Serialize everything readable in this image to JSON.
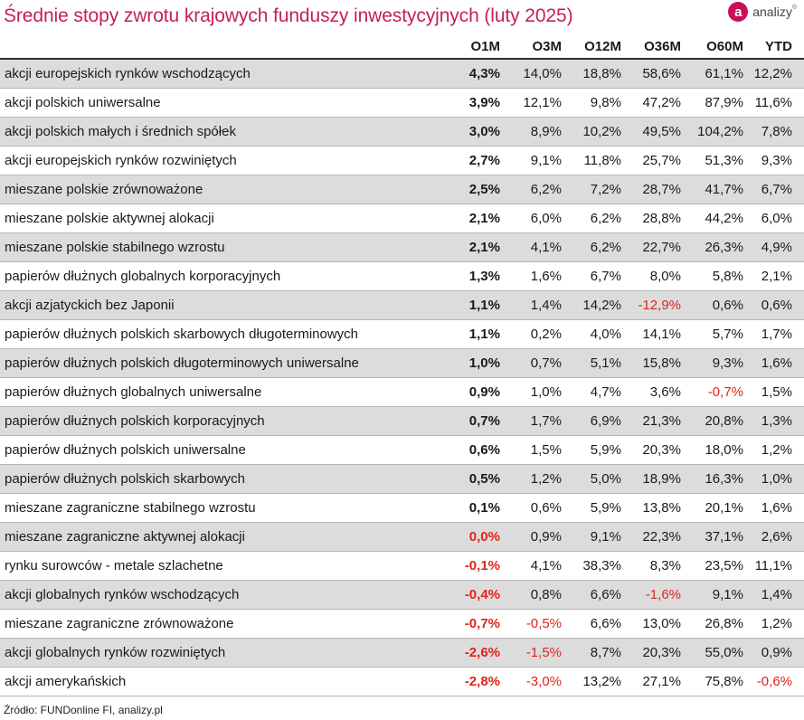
{
  "title": "Średnie stopy zwrotu krajowych funduszy inwestycyjnych (luty 2025)",
  "logo": {
    "text": "analizy",
    "mark": "a",
    "mark_icon": "analizy-logo-icon",
    "brand_color": "#c8105a"
  },
  "colors": {
    "title": "#c41f56",
    "negative": "#e2231a",
    "row_shade": "#dcdcdc"
  },
  "source": "Źródło: FUNDonline FI, analizy.pl",
  "chart_data": {
    "type": "table",
    "title": "Średnie stopy zwrotu krajowych funduszy inwestycyjnych (luty 2025)",
    "columns": [
      "O1M",
      "O3M",
      "O12M",
      "O36M",
      "O60M",
      "YTD"
    ],
    "rows": [
      {
        "name": "akcji europejskich rynków wschodzących",
        "values": [
          "4,3%",
          "14,0%",
          "18,8%",
          "58,6%",
          "61,1%",
          "12,2%"
        ]
      },
      {
        "name": "akcji polskich uniwersalne",
        "values": [
          "3,9%",
          "12,1%",
          "9,8%",
          "47,2%",
          "87,9%",
          "11,6%"
        ]
      },
      {
        "name": "akcji polskich małych i średnich spółek",
        "values": [
          "3,0%",
          "8,9%",
          "10,2%",
          "49,5%",
          "104,2%",
          "7,8%"
        ]
      },
      {
        "name": "akcji europejskich rynków rozwiniętych",
        "values": [
          "2,7%",
          "9,1%",
          "11,8%",
          "25,7%",
          "51,3%",
          "9,3%"
        ]
      },
      {
        "name": "mieszane polskie zrównoważone",
        "values": [
          "2,5%",
          "6,2%",
          "7,2%",
          "28,7%",
          "41,7%",
          "6,7%"
        ]
      },
      {
        "name": "mieszane polskie aktywnej alokacji",
        "values": [
          "2,1%",
          "6,0%",
          "6,2%",
          "28,8%",
          "44,2%",
          "6,0%"
        ]
      },
      {
        "name": "mieszane polskie stabilnego wzrostu",
        "values": [
          "2,1%",
          "4,1%",
          "6,2%",
          "22,7%",
          "26,3%",
          "4,9%"
        ]
      },
      {
        "name": "papierów dłużnych globalnych korporacyjnych",
        "values": [
          "1,3%",
          "1,6%",
          "6,7%",
          "8,0%",
          "5,8%",
          "2,1%"
        ]
      },
      {
        "name": "akcji azjatyckich bez Japonii",
        "values": [
          "1,1%",
          "1,4%",
          "14,2%",
          "-12,9%",
          "0,6%",
          "0,6%"
        ]
      },
      {
        "name": "papierów dłużnych polskich skarbowych długoterminowych",
        "values": [
          "1,1%",
          "0,2%",
          "4,0%",
          "14,1%",
          "5,7%",
          "1,7%"
        ]
      },
      {
        "name": "papierów dłużnych polskich długoterminowych uniwersalne",
        "values": [
          "1,0%",
          "0,7%",
          "5,1%",
          "15,8%",
          "9,3%",
          "1,6%"
        ]
      },
      {
        "name": "papierów dłużnych globalnych uniwersalne",
        "values": [
          "0,9%",
          "1,0%",
          "4,7%",
          "3,6%",
          "-0,7%",
          "1,5%"
        ]
      },
      {
        "name": "papierów dłużnych polskich korporacyjnych",
        "values": [
          "0,7%",
          "1,7%",
          "6,9%",
          "21,3%",
          "20,8%",
          "1,3%"
        ]
      },
      {
        "name": "papierów dłużnych polskich uniwersalne",
        "values": [
          "0,6%",
          "1,5%",
          "5,9%",
          "20,3%",
          "18,0%",
          "1,2%"
        ]
      },
      {
        "name": "papierów dłużnych polskich skarbowych",
        "values": [
          "0,5%",
          "1,2%",
          "5,0%",
          "18,9%",
          "16,3%",
          "1,0%"
        ]
      },
      {
        "name": "mieszane zagraniczne stabilnego wzrostu",
        "values": [
          "0,1%",
          "0,6%",
          "5,9%",
          "13,8%",
          "20,1%",
          "1,6%"
        ]
      },
      {
        "name": "mieszane zagraniczne aktywnej alokacji",
        "values": [
          "0,0%",
          "0,9%",
          "9,1%",
          "22,3%",
          "37,1%",
          "2,6%"
        ]
      },
      {
        "name": "rynku surowców - metale szlachetne",
        "values": [
          "-0,1%",
          "4,1%",
          "38,3%",
          "8,3%",
          "23,5%",
          "11,1%"
        ]
      },
      {
        "name": "akcji globalnych rynków wschodzących",
        "values": [
          "-0,4%",
          "0,8%",
          "6,6%",
          "-1,6%",
          "9,1%",
          "1,4%"
        ]
      },
      {
        "name": "mieszane zagraniczne zrównoważone",
        "values": [
          "-0,7%",
          "-0,5%",
          "6,6%",
          "13,0%",
          "26,8%",
          "1,2%"
        ]
      },
      {
        "name": "akcji globalnych rynków rozwiniętych",
        "values": [
          "-2,6%",
          "-1,5%",
          "8,7%",
          "20,3%",
          "55,0%",
          "0,9%"
        ]
      },
      {
        "name": "akcji amerykańskich",
        "values": [
          "-2,8%",
          "-3,0%",
          "13,2%",
          "27,1%",
          "75,8%",
          "-0,6%"
        ]
      }
    ],
    "highlight_red": [
      {
        "row": 8,
        "col": 3
      },
      {
        "row": 11,
        "col": 4
      },
      {
        "row": 16,
        "col": 0
      },
      {
        "row": 17,
        "col": 0
      },
      {
        "row": 18,
        "col": 0
      },
      {
        "row": 18,
        "col": 3
      },
      {
        "row": 19,
        "col": 0
      },
      {
        "row": 19,
        "col": 1
      },
      {
        "row": 20,
        "col": 0
      },
      {
        "row": 20,
        "col": 1
      },
      {
        "row": 21,
        "col": 0
      },
      {
        "row": 21,
        "col": 1
      },
      {
        "row": 21,
        "col": 5
      }
    ]
  }
}
